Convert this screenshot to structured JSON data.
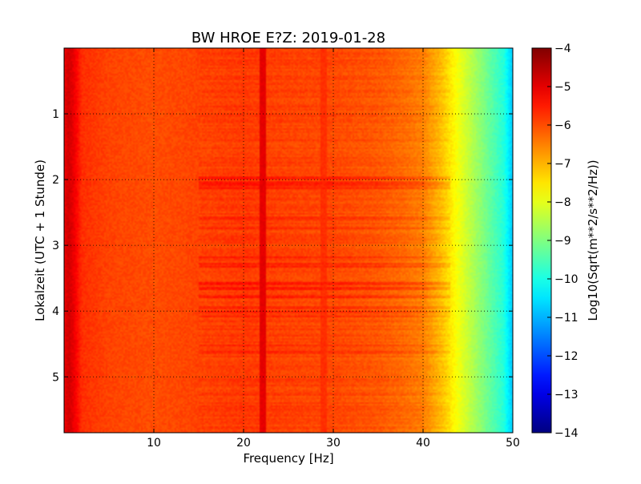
{
  "chart_data": {
    "type": "heatmap",
    "title": "BW HROE E?Z: 2019-01-28",
    "xlabel": "Frequency [Hz]",
    "ylabel": "Lokalzeit (UTC + 1 Stunde)",
    "xlim": [
      0,
      50
    ],
    "ylim": [
      5.85,
      0.0
    ],
    "x_ticks": [
      10,
      20,
      30,
      40,
      50
    ],
    "y_ticks": [
      1,
      2,
      3,
      4,
      5
    ],
    "grid": true,
    "grid_style": "dotted",
    "colormap": "jet",
    "colorbar": {
      "label": "Log10(Sqrt(m**2/s**2/Hz))",
      "range": [
        -14,
        -4
      ],
      "ticks": [
        -4,
        -5,
        -6,
        -7,
        -8,
        -9,
        -10,
        -11,
        -12,
        -13,
        -14
      ]
    },
    "frequency_profile": {
      "frequencies_hz": [
        0,
        0.5,
        1,
        2,
        5,
        10,
        15,
        20,
        25,
        30,
        35,
        38,
        40,
        41,
        42,
        43,
        44,
        45,
        46,
        47,
        48,
        49,
        49.5,
        50
      ],
      "log10_amplitude": [
        -5.1,
        -4.8,
        -5.0,
        -5.7,
        -5.9,
        -6.0,
        -5.9,
        -5.8,
        -5.9,
        -5.95,
        -6.1,
        -6.3,
        -6.5,
        -6.8,
        -7.1,
        -7.5,
        -7.9,
        -8.3,
        -8.7,
        -9.1,
        -9.5,
        -9.9,
        -10.4,
        -10.8
      ]
    },
    "spectral_lines": [
      {
        "frequency_hz": 22.2,
        "log10_amplitude": -5.0
      },
      {
        "frequency_hz": 29.0,
        "log10_amplitude": -5.7
      }
    ],
    "noisy_intervals_hours": [
      {
        "start": 1.95,
        "end": 2.15,
        "boost": 0.35
      },
      {
        "start": 2.55,
        "end": 2.75,
        "boost": 0.3
      },
      {
        "start": 3.15,
        "end": 3.35,
        "boost": 0.3
      },
      {
        "start": 3.55,
        "end": 4.1,
        "boost": 0.35
      },
      {
        "start": 4.5,
        "end": 4.7,
        "boost": 0.25
      }
    ]
  }
}
